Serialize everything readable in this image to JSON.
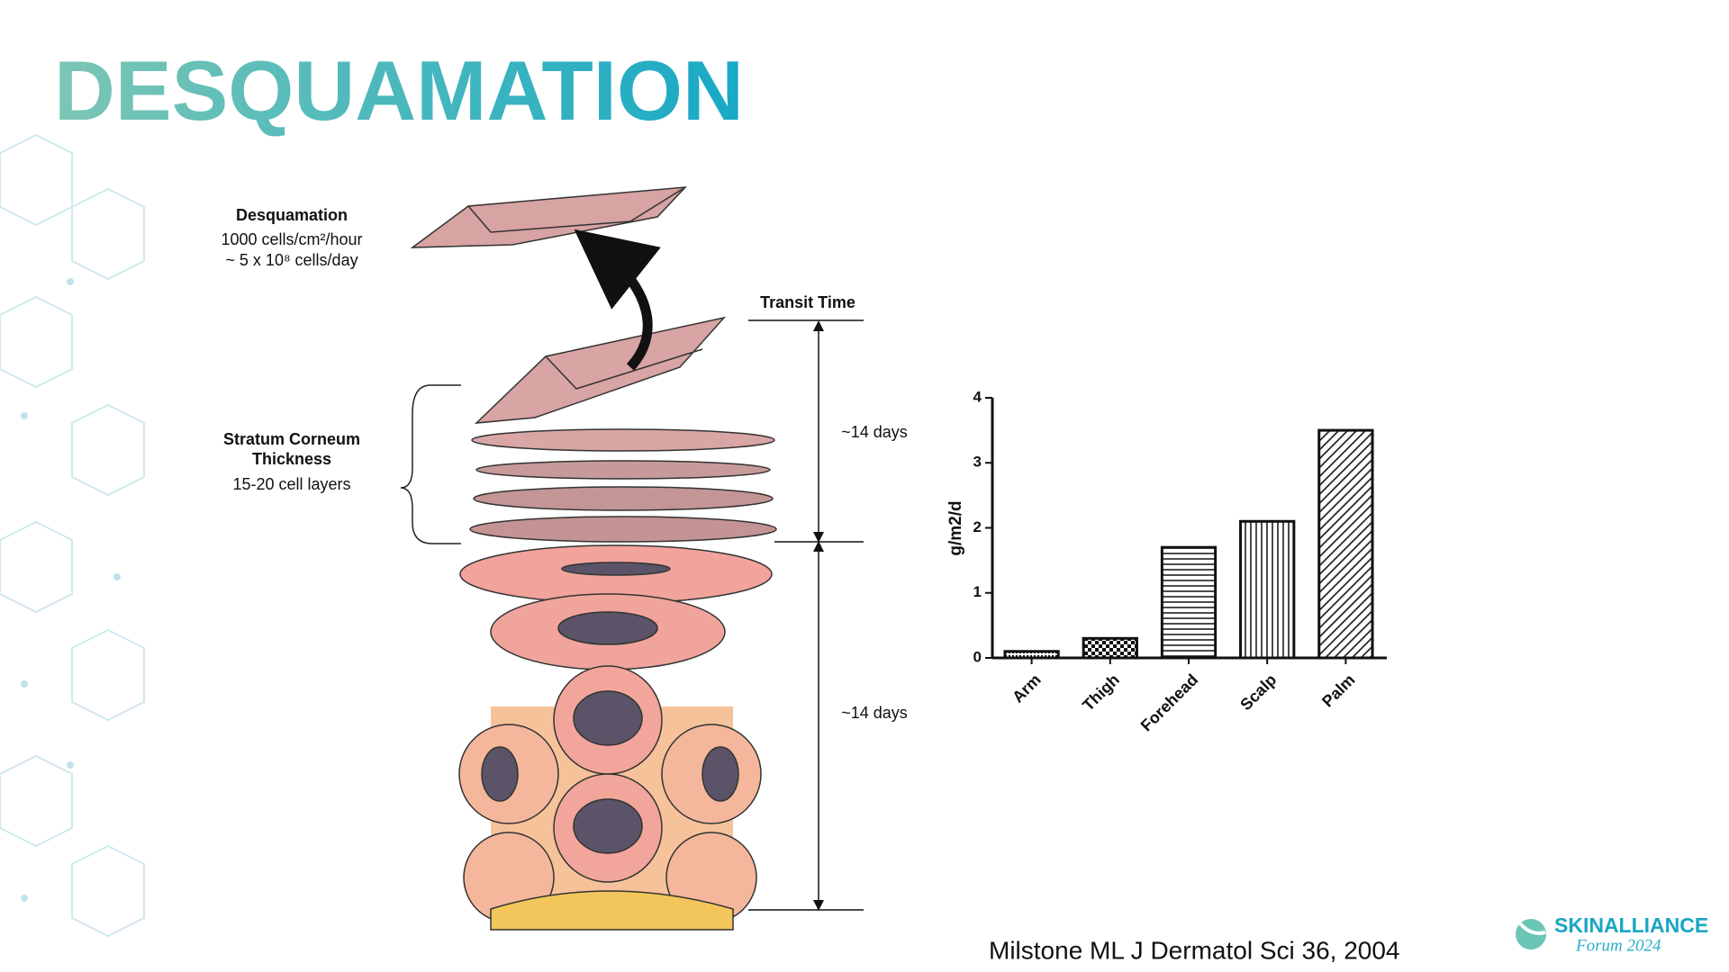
{
  "slide": {
    "title": "DESQUAMATION",
    "diagram": {
      "desquamation": "Desquamation",
      "rate_hour": "1000 cells/cm²/hour",
      "rate_day": "~ 5 x 10⁸ cells/day",
      "transit_time": "Transit Time",
      "upper_days": "~14 days",
      "lower_days": "~14 days",
      "sc_line1": "Stratum Corneum",
      "sc_line2": "Thickness",
      "sc_layers": "15-20 cell layers"
    },
    "citation": "Milstone ML J Dermatol Sci 36, 2004",
    "logo": {
      "name": "SKINALLIANCE",
      "event": "Forum 2024"
    }
  },
  "chart_data": {
    "type": "bar",
    "ylabel": "g/m2/d",
    "categories": [
      "Arm",
      "Thigh",
      "Forehead",
      "Scalp",
      "Palm"
    ],
    "values": [
      0.1,
      0.3,
      1.7,
      2.1,
      3.5
    ],
    "patterns": [
      "dots",
      "checker",
      "horizontal",
      "vertical",
      "diagonal"
    ],
    "ylim": [
      0,
      4
    ],
    "yticks": [
      0,
      1,
      2,
      3,
      4
    ],
    "grid": false
  }
}
